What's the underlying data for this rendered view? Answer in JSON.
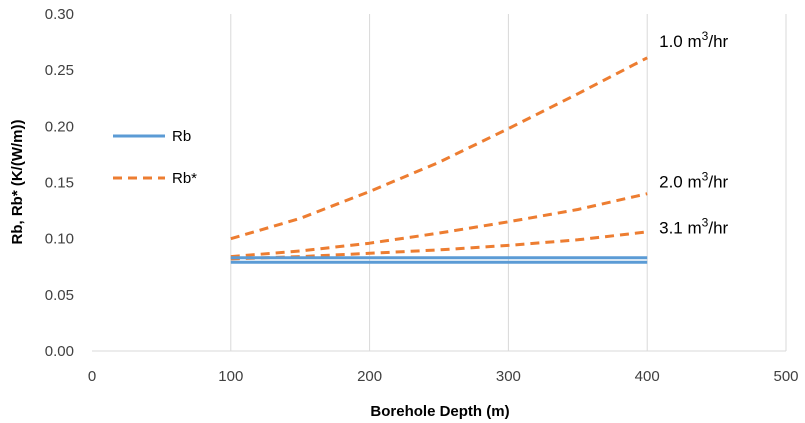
{
  "chart_data": {
    "type": "line",
    "xlabel": "Borehole Depth (m)",
    "ylabel": "Rb, Rb* (K/(W/m))",
    "xlim": [
      0,
      500
    ],
    "ylim": [
      0,
      0.3
    ],
    "x_ticks": [
      "0",
      "100",
      "200",
      "300",
      "400",
      "500"
    ],
    "y_ticks": [
      "0.00",
      "0.05",
      "0.10",
      "0.15",
      "0.20",
      "0.25",
      "0.30"
    ],
    "grid": "vertical",
    "legend_position": "left",
    "legend": [
      "Rb",
      "Rb*"
    ],
    "colors": {
      "Rb": "#5b9bd5",
      "Rb*": "#ed7d31"
    },
    "series": [
      {
        "legend": "Rb*",
        "annotation": "1.0 m³/hr",
        "style": "dashed",
        "x": [
          100,
          150,
          200,
          250,
          300,
          350,
          400
        ],
        "y": [
          0.1,
          0.118,
          0.142,
          0.168,
          0.198,
          0.229,
          0.261
        ]
      },
      {
        "legend": "Rb*",
        "annotation": "2.0 m³/hr",
        "style": "dashed",
        "x": [
          100,
          150,
          200,
          250,
          300,
          350,
          400
        ],
        "y": [
          0.084,
          0.089,
          0.096,
          0.105,
          0.115,
          0.126,
          0.14
        ]
      },
      {
        "legend": "Rb*",
        "annotation": "3.1 m³/hr",
        "style": "dashed",
        "x": [
          100,
          150,
          200,
          250,
          300,
          350,
          400
        ],
        "y": [
          0.082,
          0.084,
          0.087,
          0.09,
          0.094,
          0.099,
          0.106
        ]
      },
      {
        "legend": "Rb",
        "annotation": "",
        "style": "solid",
        "x": [
          100,
          400
        ],
        "y": [
          0.083,
          0.083
        ]
      },
      {
        "legend": "Rb",
        "annotation": "",
        "style": "solid",
        "x": [
          100,
          400
        ],
        "y": [
          0.079,
          0.079
        ]
      }
    ],
    "annotations": [
      {
        "text": "1.0 m³/hr",
        "x": 405,
        "y": 0.275
      },
      {
        "text": "2.0 m³/hr",
        "x": 405,
        "y": 0.15
      },
      {
        "text": "3.1 m³/hr",
        "x": 405,
        "y": 0.109
      }
    ]
  }
}
